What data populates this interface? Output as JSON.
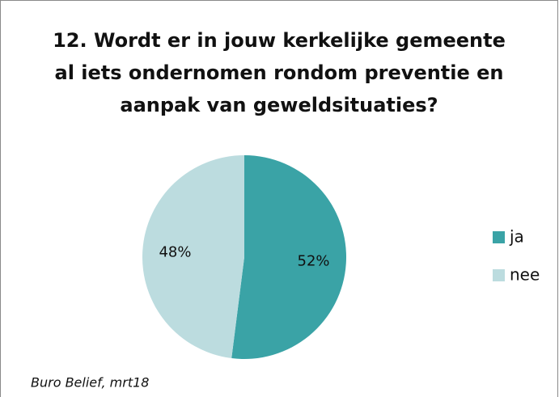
{
  "chart_data": {
    "type": "pie",
    "title": "12. Wordt er in jouw kerkelijke gemeente al iets ondernomen rondom preventie en aanpak van geweldsituaties?",
    "categories": [
      "ja",
      "nee"
    ],
    "values": [
      52,
      48
    ],
    "value_labels": [
      "52%",
      "48%"
    ],
    "colors": [
      "#3aa3a6",
      "#bcdcdf"
    ],
    "legend": "right",
    "source": "Buro Belief, mrt18"
  }
}
